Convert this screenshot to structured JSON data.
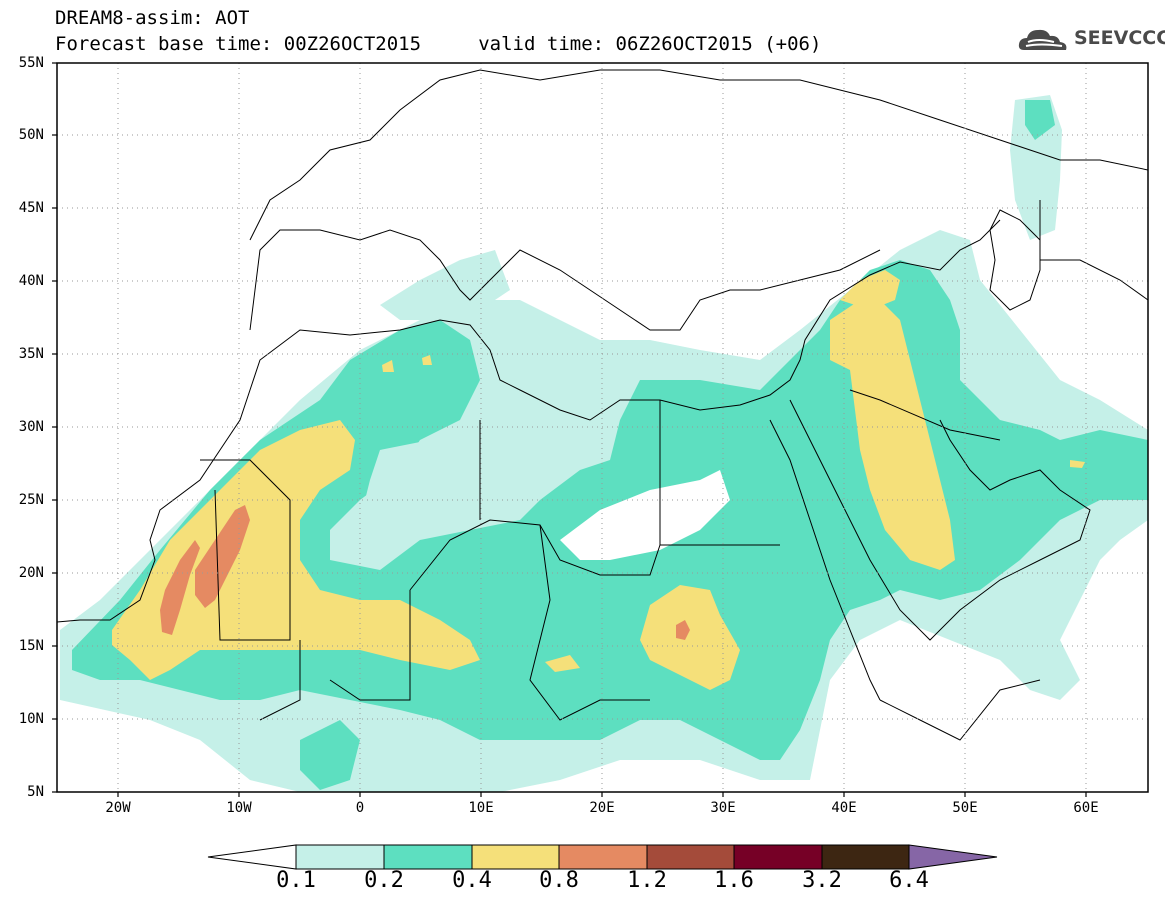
{
  "title": {
    "line1": "DREAM8-assim: AOT",
    "line2": "Forecast base time: 00Z26OCT2015     valid time: 06Z26OCT2015 (+06)"
  },
  "logo": {
    "text": "SEEVCCC",
    "icon": "cloud-icon"
  },
  "map": {
    "projection": "equirectangular",
    "lon_range": [
      -25,
      65
    ],
    "lat_range": [
      5,
      55
    ],
    "lat_labels": [
      "55N",
      "50N",
      "45N",
      "40N",
      "35N",
      "30N",
      "25N",
      "20N",
      "15N",
      "10N",
      "5N"
    ],
    "lon_labels": [
      "20W",
      "10W",
      "0",
      "10E",
      "20E",
      "30E",
      "40E",
      "50E",
      "60E"
    ],
    "grid": "dotted",
    "fields": [
      {
        "level": "0.1-0.2",
        "color": "#c5f0e8"
      },
      {
        "level": "0.2-0.4",
        "color": "#5ddfc0"
      },
      {
        "level": "0.4-0.8",
        "color": "#f5e07a"
      },
      {
        "level": "0.8-1.2",
        "color": "#e58a62"
      },
      {
        "level": "1.2-1.6",
        "color": "#a44b3a"
      },
      {
        "level": "1.6-3.2",
        "color": "#760026"
      },
      {
        "level": "3.2-6.4",
        "color": "#3d2612"
      },
      {
        "level": ">6.4",
        "color": "#8666a6"
      }
    ]
  },
  "colorbar": {
    "labels": [
      "0.1",
      "0.2",
      "0.4",
      "0.8",
      "1.2",
      "1.6",
      "3.2",
      "6.4"
    ],
    "colors": [
      "#ffffff",
      "#c5f0e8",
      "#5ddfc0",
      "#f5e07a",
      "#e58a62",
      "#a44b3a",
      "#760026",
      "#3d2612",
      "#8666a6"
    ]
  }
}
